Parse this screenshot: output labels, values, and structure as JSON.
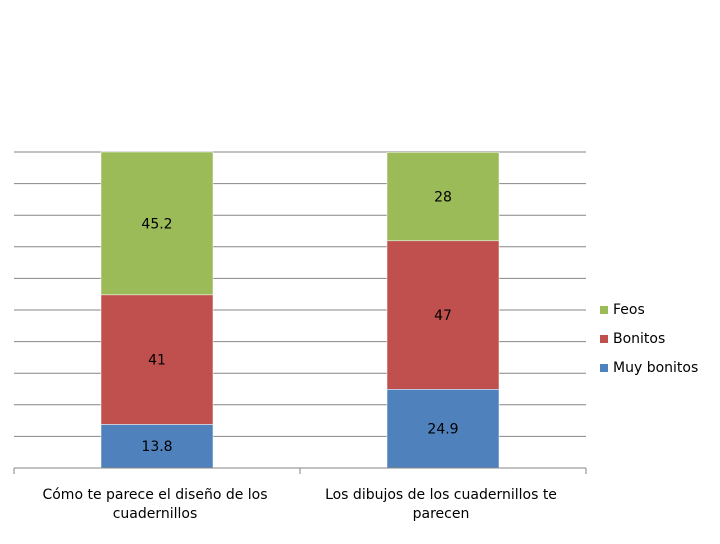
{
  "chart_data": {
    "type": "bar",
    "stacked": true,
    "categories": [
      "Cómo te parece el diseño de los cuadernillos",
      "Los dibujos de los cuadernillos te parecen"
    ],
    "series": [
      {
        "name": "Muy bonitos",
        "values": [
          13.8,
          24.9
        ],
        "labels": [
          "13.8",
          "24.9"
        ],
        "color": "#4F81BD"
      },
      {
        "name": "Bonitos",
        "values": [
          41,
          47
        ],
        "labels": [
          "41",
          "47"
        ],
        "color": "#C0504D"
      },
      {
        "name": "Feos",
        "values": [
          45.2,
          28
        ],
        "labels": [
          "45.2",
          "28"
        ],
        "color": "#9BBB59"
      }
    ],
    "ylim": [
      0,
      100
    ],
    "grid": true,
    "legend_position": "right",
    "legend_order": [
      "Feos",
      "Bonitos",
      "Muy bonitos"
    ]
  }
}
